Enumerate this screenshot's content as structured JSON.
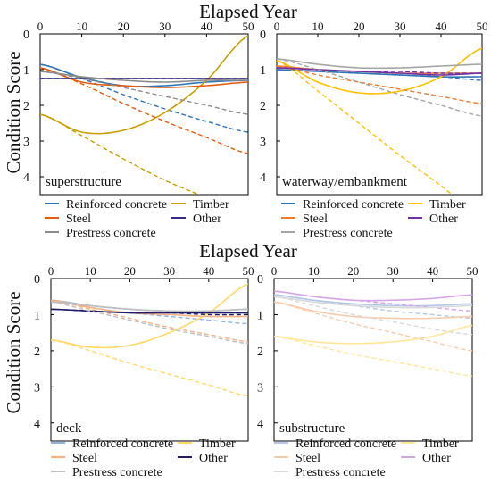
{
  "figure": {
    "top_xlabel": "Elapsed Year",
    "bottom_xlabel": "Elapsed Year",
    "ylabel_top": "Condition Score",
    "ylabel_bottom": "Condition Score"
  },
  "chart_data": [
    {
      "type": "line",
      "title": "superstructure",
      "xlim": [
        0,
        50
      ],
      "ylim": [
        0,
        4.5
      ],
      "y_reversed": true,
      "x_ticks": [
        0,
        10,
        20,
        30,
        40,
        50
      ],
      "y_ticks": [
        0,
        1,
        2,
        3,
        4
      ],
      "series": [
        {
          "name": "Reinforced concrete",
          "color": "#2e75b6",
          "solid": [
            0.85,
            1.22,
            1.45,
            1.45,
            1.35,
            1.3
          ],
          "dashed": [
            0.85,
            1.25,
            1.7,
            2.1,
            2.45,
            2.75
          ]
        },
        {
          "name": "Timber",
          "color": "#c9a000",
          "solid": [
            2.25,
            2.75,
            2.7,
            2.2,
            1.3,
            0.05
          ],
          "dashed": [
            2.25,
            2.85,
            3.5,
            4.1,
            4.6,
            5.2
          ]
        },
        {
          "name": "Steel",
          "color": "#e35d0f",
          "solid": [
            0.95,
            1.35,
            1.45,
            1.5,
            1.45,
            1.35
          ],
          "dashed": [
            0.95,
            1.4,
            1.95,
            2.45,
            2.9,
            3.35
          ]
        },
        {
          "name": "Other",
          "color": "#3a2a86",
          "solid": [
            1.25,
            1.25,
            1.25,
            1.25,
            1.25,
            1.25
          ],
          "dashed": [
            1.25,
            1.25,
            1.25,
            1.25,
            1.25,
            1.25
          ]
        },
        {
          "name": "Prestress concrete",
          "color": "#8c8c8c",
          "solid": [
            1.05,
            1.2,
            1.3,
            1.35,
            1.3,
            1.3
          ],
          "dashed": [
            1.05,
            1.25,
            1.5,
            1.75,
            2.0,
            2.25
          ]
        }
      ],
      "legend": [
        "Reinforced concrete",
        "Timber",
        "Steel",
        "Other",
        "Prestress concrete"
      ]
    },
    {
      "type": "line",
      "title": "waterway/embankment",
      "xlim": [
        0,
        50
      ],
      "ylim": [
        0,
        4.5
      ],
      "y_reversed": true,
      "x_ticks": [
        0,
        10,
        20,
        30,
        40,
        50
      ],
      "y_ticks": [
        0,
        1,
        2,
        3,
        4
      ],
      "series": [
        {
          "name": "Reinforced concrete",
          "color": "#2e75b6",
          "solid": [
            1.0,
            1.05,
            1.1,
            1.15,
            1.2,
            1.2
          ],
          "dashed": [
            1.0,
            1.05,
            1.1,
            1.15,
            1.2,
            1.3
          ]
        },
        {
          "name": "Timber",
          "color": "#ffc000",
          "solid": [
            0.75,
            1.35,
            1.65,
            1.6,
            1.2,
            0.4
          ],
          "dashed": [
            0.75,
            1.6,
            2.5,
            3.4,
            4.25,
            5.1
          ]
        },
        {
          "name": "Steel",
          "color": "#ed7d31",
          "solid": [
            0.9,
            1.0,
            1.05,
            1.1,
            1.1,
            1.1
          ],
          "dashed": [
            0.9,
            1.15,
            1.35,
            1.55,
            1.75,
            1.95
          ]
        },
        {
          "name": "Other",
          "color": "#7030a0",
          "solid": [
            0.95,
            1.0,
            1.05,
            1.1,
            1.15,
            1.1
          ],
          "dashed": [
            0.95,
            1.0,
            1.05,
            1.05,
            1.1,
            1.1
          ]
        },
        {
          "name": "Prestress concrete",
          "color": "#a5a5a5",
          "solid": [
            0.7,
            0.85,
            0.95,
            0.95,
            0.9,
            0.85
          ],
          "dashed": [
            0.7,
            1.0,
            1.35,
            1.7,
            2.0,
            2.3
          ]
        }
      ],
      "legend": [
        "Reinforced concrete",
        "Timber",
        "Steel",
        "Other",
        "Prestress concrete"
      ]
    },
    {
      "type": "line",
      "title": "deck",
      "xlim": [
        0,
        50
      ],
      "ylim": [
        0,
        4.5
      ],
      "y_reversed": true,
      "x_ticks": [
        0,
        10,
        20,
        30,
        40,
        50
      ],
      "y_ticks": [
        0,
        1,
        2,
        3,
        4
      ],
      "series": [
        {
          "name": "Reinforced concrete",
          "color": "#8eb4e3",
          "solid": [
            0.6,
            0.75,
            0.85,
            0.9,
            0.9,
            0.85
          ],
          "dashed": [
            0.6,
            0.8,
            0.95,
            1.05,
            1.15,
            1.25
          ]
        },
        {
          "name": "Timber",
          "color": "#ffd966",
          "solid": [
            1.7,
            1.9,
            1.85,
            1.5,
            0.95,
            0.15
          ],
          "dashed": [
            1.7,
            2.0,
            2.35,
            2.65,
            2.95,
            3.25
          ]
        },
        {
          "name": "Steel",
          "color": "#f4b183",
          "solid": [
            0.6,
            0.8,
            0.95,
            1.0,
            1.05,
            1.05
          ],
          "dashed": [
            0.6,
            0.85,
            1.1,
            1.35,
            1.55,
            1.75
          ]
        },
        {
          "name": "Other",
          "color": "#1f1b6b",
          "solid": [
            0.85,
            0.9,
            0.95,
            0.95,
            0.95,
            0.95
          ],
          "dashed": [
            0.85,
            0.9,
            0.95,
            0.95,
            1.0,
            1.0
          ]
        },
        {
          "name": "Prestress concrete",
          "color": "#bfbfbf",
          "solid": [
            0.65,
            0.75,
            0.85,
            0.9,
            0.9,
            0.85
          ],
          "dashed": [
            0.65,
            0.9,
            1.15,
            1.4,
            1.6,
            1.8
          ]
        }
      ],
      "legend": [
        "Reinforced concrete",
        "Timber",
        "Steel",
        "Other",
        "Prestress concrete"
      ]
    },
    {
      "type": "line",
      "title": "substructure",
      "xlim": [
        0,
        50
      ],
      "ylim": [
        0,
        4.5
      ],
      "y_reversed": true,
      "x_ticks": [
        0,
        10,
        20,
        30,
        40,
        50
      ],
      "y_ticks": [
        0,
        1,
        2,
        3,
        4
      ],
      "series": [
        {
          "name": "Reinforced concrete",
          "color": "#b4c7e7",
          "solid": [
            0.45,
            0.6,
            0.7,
            0.75,
            0.75,
            0.7
          ],
          "dashed": [
            0.45,
            0.6,
            0.75,
            0.9,
            1.0,
            1.1
          ]
        },
        {
          "name": "Timber",
          "color": "#ffe699",
          "solid": [
            1.6,
            1.75,
            1.8,
            1.75,
            1.6,
            1.3
          ],
          "dashed": [
            1.6,
            1.85,
            2.1,
            2.3,
            2.5,
            2.7
          ]
        },
        {
          "name": "Steel",
          "color": "#f8cbad",
          "solid": [
            0.65,
            0.9,
            1.05,
            1.1,
            1.1,
            1.05
          ],
          "dashed": [
            0.65,
            0.95,
            1.25,
            1.5,
            1.75,
            2.0
          ]
        },
        {
          "name": "Other",
          "color": "#d5a6e6",
          "solid": [
            0.35,
            0.5,
            0.6,
            0.6,
            0.55,
            0.45
          ],
          "dashed": [
            0.35,
            0.5,
            0.6,
            0.7,
            0.8,
            0.9
          ]
        },
        {
          "name": "Prestress concrete",
          "color": "#d9d9d9",
          "solid": [
            0.5,
            0.65,
            0.75,
            0.8,
            0.8,
            0.75
          ],
          "dashed": [
            0.5,
            0.75,
            1.0,
            1.2,
            1.4,
            1.55
          ]
        }
      ],
      "legend": [
        "Reinforced concrete",
        "Timber",
        "Steel",
        "Other",
        "Prestress concrete"
      ]
    }
  ]
}
